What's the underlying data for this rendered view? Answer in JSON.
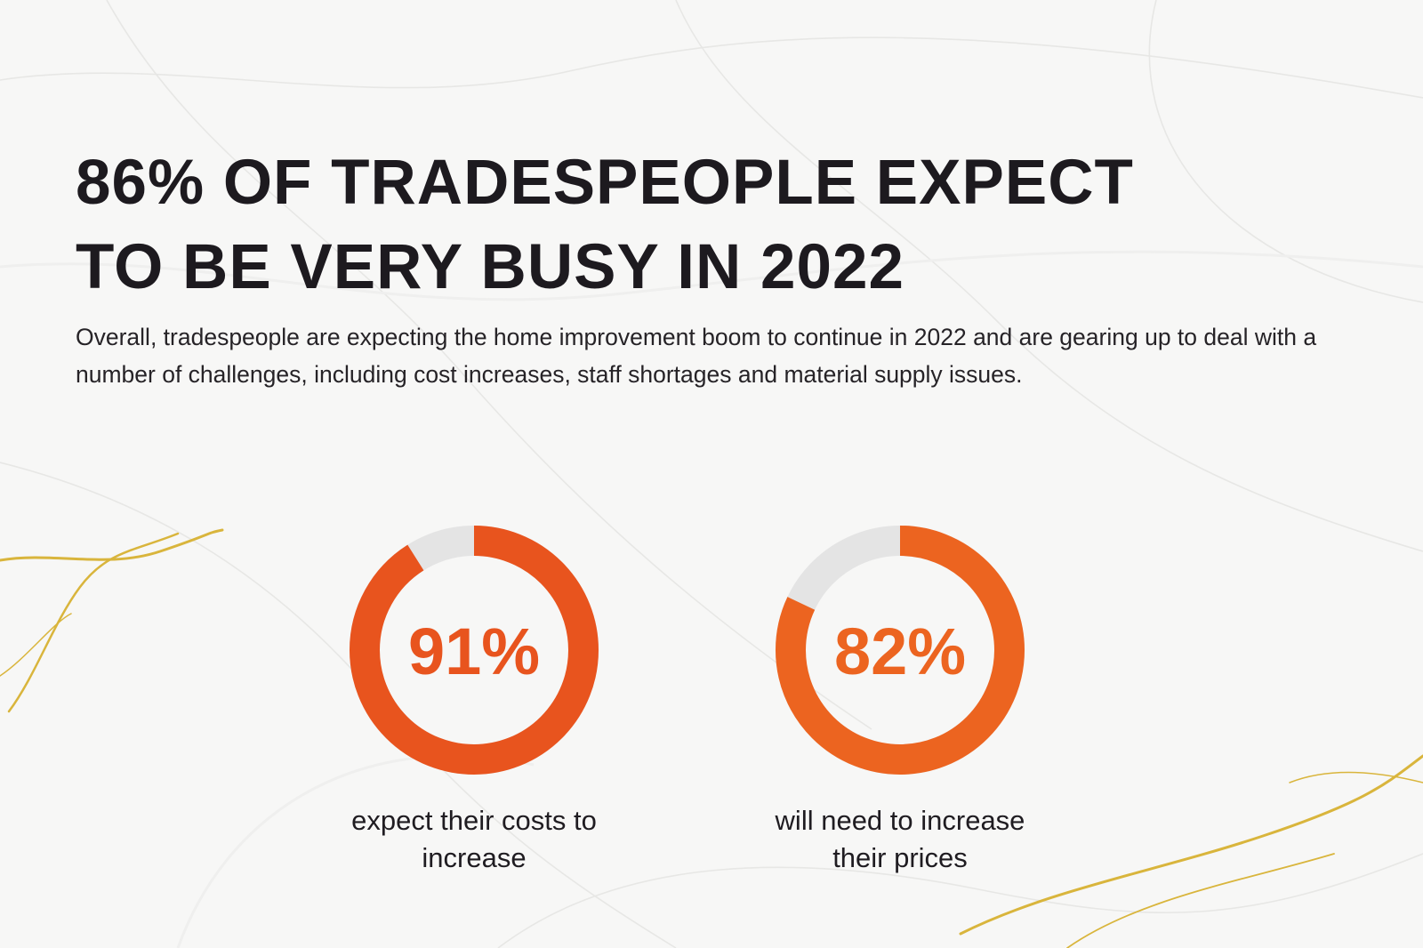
{
  "title_lines": [
    "86% OF TRADESPEOPLE EXPECT",
    "TO BE VERY BUSY IN 2022"
  ],
  "intro": "Overall, tradespeople are expecting the home improvement boom to continue in 2022 and are gearing up to deal with a number of challenges, including cost increases, staff shortages and material supply issues.",
  "colors": {
    "ring_track": "#e4e4e4",
    "ring_a": "#e8541e",
    "ring_b": "#ec6420",
    "gold_vein": "#d9b53c"
  },
  "chart_data": [
    {
      "type": "pie",
      "variant": "donut",
      "value_percent": 91,
      "center_label": "91%",
      "caption_lines": [
        "expect their costs to",
        "increase"
      ]
    },
    {
      "type": "pie",
      "variant": "donut",
      "value_percent": 82,
      "center_label": "82%",
      "caption_lines": [
        "will need to increase",
        "their prices"
      ]
    }
  ]
}
